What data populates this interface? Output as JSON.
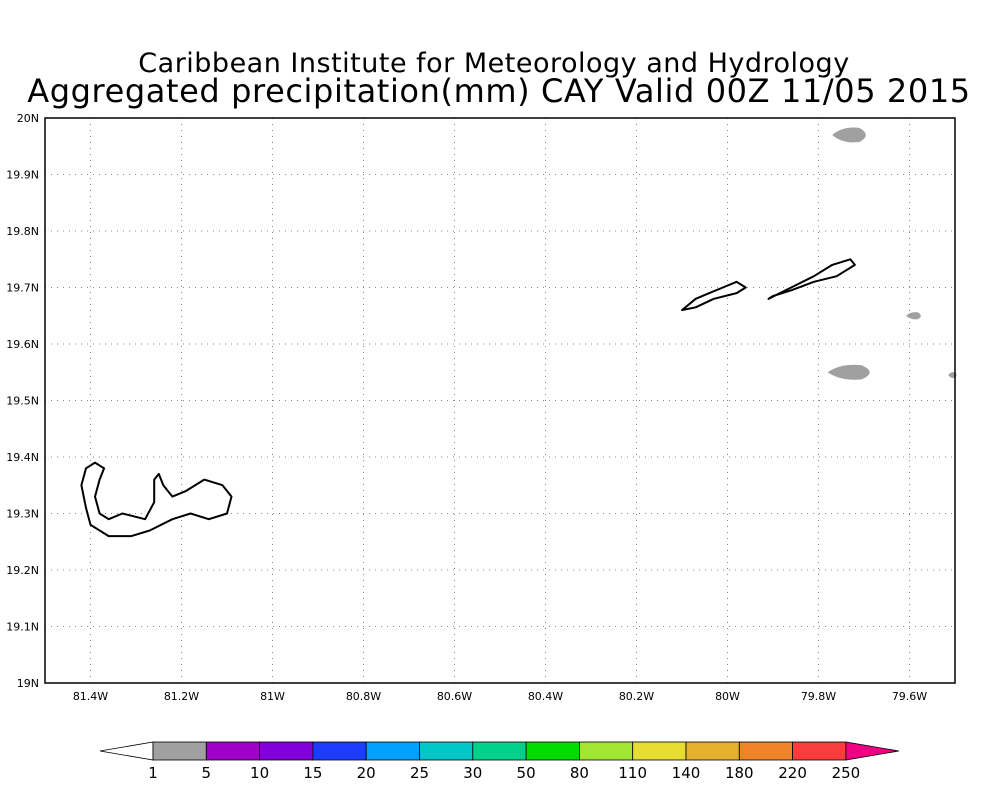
{
  "title": {
    "line1": "Caribbean Institute for Meteorology and Hydrology",
    "line2": "Aggregated precipitation(mm) CAY Valid 00Z 11/05 2015"
  },
  "map": {
    "lon_range": [
      -81.5,
      -79.5
    ],
    "lat_range": [
      19.0,
      20.0
    ],
    "grid": "dotted",
    "lat_ticks": [
      {
        "value": 20.0,
        "label": "20N"
      },
      {
        "value": 19.9,
        "label": "19.9N"
      },
      {
        "value": 19.8,
        "label": "19.8N"
      },
      {
        "value": 19.7,
        "label": "19.7N"
      },
      {
        "value": 19.6,
        "label": "19.6N"
      },
      {
        "value": 19.5,
        "label": "19.5N"
      },
      {
        "value": 19.4,
        "label": "19.4N"
      },
      {
        "value": 19.3,
        "label": "19.3N"
      },
      {
        "value": 19.2,
        "label": "19.2N"
      },
      {
        "value": 19.1,
        "label": "19.1N"
      },
      {
        "value": 19.0,
        "label": "19N"
      }
    ],
    "lon_ticks": [
      {
        "value": -81.4,
        "label": "81.4W"
      },
      {
        "value": -81.2,
        "label": "81.2W"
      },
      {
        "value": -81.0,
        "label": "81W"
      },
      {
        "value": -80.8,
        "label": "80.8W"
      },
      {
        "value": -80.6,
        "label": "80.6W"
      },
      {
        "value": -80.4,
        "label": "80.4W"
      },
      {
        "value": -80.2,
        "label": "80.2W"
      },
      {
        "value": -80.0,
        "label": "80W"
      },
      {
        "value": -79.8,
        "label": "79.8W"
      },
      {
        "value": -79.6,
        "label": "79.6W"
      }
    ],
    "islands": [
      {
        "id": "grand-cayman",
        "coords": [
          [
            -81.41,
            19.38
          ],
          [
            -81.39,
            19.39
          ],
          [
            -81.37,
            19.38
          ],
          [
            -81.38,
            19.36
          ],
          [
            -81.39,
            19.33
          ],
          [
            -81.38,
            19.3
          ],
          [
            -81.36,
            19.29
          ],
          [
            -81.33,
            19.3
          ],
          [
            -81.28,
            19.29
          ],
          [
            -81.26,
            19.32
          ],
          [
            -81.26,
            19.36
          ],
          [
            -81.25,
            19.37
          ],
          [
            -81.24,
            19.35
          ],
          [
            -81.22,
            19.33
          ],
          [
            -81.19,
            19.34
          ],
          [
            -81.15,
            19.36
          ],
          [
            -81.11,
            19.35
          ],
          [
            -81.09,
            19.33
          ],
          [
            -81.1,
            19.3
          ],
          [
            -81.14,
            19.29
          ],
          [
            -81.18,
            19.3
          ],
          [
            -81.22,
            19.29
          ],
          [
            -81.27,
            19.27
          ],
          [
            -81.31,
            19.26
          ],
          [
            -81.36,
            19.26
          ],
          [
            -81.4,
            19.28
          ],
          [
            -81.41,
            19.31
          ],
          [
            -81.42,
            19.35
          ]
        ]
      },
      {
        "id": "little-cayman",
        "coords": [
          [
            -80.1,
            19.66
          ],
          [
            -80.07,
            19.68
          ],
          [
            -80.04,
            19.69
          ],
          [
            -80.01,
            19.7
          ],
          [
            -79.98,
            19.71
          ],
          [
            -79.96,
            19.7
          ],
          [
            -79.98,
            19.69
          ],
          [
            -80.03,
            19.68
          ],
          [
            -80.07,
            19.665
          ]
        ]
      },
      {
        "id": "cayman-brac",
        "coords": [
          [
            -79.91,
            19.68
          ],
          [
            -79.86,
            19.7
          ],
          [
            -79.81,
            19.72
          ],
          [
            -79.77,
            19.74
          ],
          [
            -79.73,
            19.75
          ],
          [
            -79.72,
            19.74
          ],
          [
            -79.76,
            19.72
          ],
          [
            -79.81,
            19.71
          ],
          [
            -79.86,
            19.695
          ],
          [
            -79.9,
            19.685
          ]
        ]
      }
    ],
    "precip_areas": [
      {
        "category": "1-5",
        "center": [
          -79.73,
          19.97
        ],
        "size": [
          0.08,
          0.025
        ]
      },
      {
        "category": "1-5",
        "center": [
          -79.59,
          19.65
        ],
        "size": [
          0.035,
          0.012
        ]
      },
      {
        "category": "1-5",
        "center": [
          -79.73,
          19.55
        ],
        "size": [
          0.1,
          0.025
        ]
      },
      {
        "category": "1-5",
        "center": [
          -79.505,
          19.545
        ],
        "size": [
          0.02,
          0.01
        ]
      }
    ]
  },
  "colorbar": {
    "boundaries": [
      "1",
      "5",
      "10",
      "15",
      "20",
      "25",
      "30",
      "50",
      "80",
      "110",
      "140",
      "180",
      "220",
      "250"
    ],
    "colors": [
      "#a0a0a0",
      "#a000c8",
      "#8200dc",
      "#1e3cff",
      "#00a0ff",
      "#00c8c8",
      "#00d28c",
      "#00dc00",
      "#a0e632",
      "#e6dc32",
      "#e6af2d",
      "#f08228",
      "#fa3c3c"
    ],
    "under_color": "#ffffff",
    "over_color": "#f00082"
  }
}
